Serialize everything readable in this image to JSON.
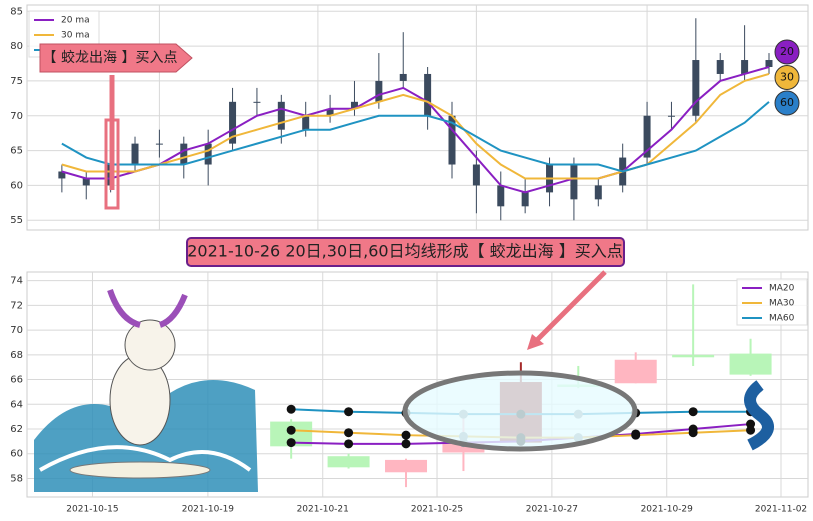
{
  "chart_data": [
    {
      "type": "candlestick",
      "xlim": [
        -1.43,
        30.6
      ],
      "ylim": [
        53.6,
        85.9
      ],
      "yticks": [
        55,
        60,
        65,
        70,
        75,
        80,
        85
      ],
      "grid": true,
      "candle_color": "#3b4a5e",
      "open": [
        62,
        61,
        60,
        63,
        66,
        66,
        63,
        66,
        72,
        72,
        68,
        70,
        71,
        72,
        75,
        76,
        70,
        63,
        60,
        57,
        59,
        63,
        58,
        60,
        64,
        70,
        70,
        78,
        76,
        78
      ],
      "high": [
        63,
        62,
        75,
        67,
        68,
        67,
        68,
        74,
        74,
        73,
        72,
        73,
        75,
        79,
        82,
        77,
        72,
        65,
        62,
        61,
        64,
        64,
        61,
        66,
        72,
        72,
        84,
        79,
        83,
        79
      ],
      "low": [
        59,
        58,
        59,
        62,
        64,
        61,
        60,
        65,
        70,
        66,
        67,
        69,
        70,
        71,
        74,
        68,
        61,
        56,
        55,
        56,
        57,
        55,
        57,
        59,
        63,
        68,
        69,
        75,
        75,
        76
      ],
      "close": [
        61,
        60,
        63,
        66,
        66,
        63,
        66,
        72,
        72,
        68,
        70,
        71,
        72,
        75,
        76,
        70,
        63,
        60,
        57,
        59,
        63,
        58,
        60,
        64,
        70,
        70,
        78,
        76,
        78,
        77
      ],
      "series": [
        {
          "name": "20 ma",
          "color": "#8a1fc2",
          "values": [
            62,
            61,
            61,
            62,
            63,
            65,
            66,
            68,
            70,
            71,
            70,
            71,
            71,
            73,
            74,
            72,
            68,
            64,
            60,
            59,
            60,
            61,
            61,
            62,
            65,
            68,
            72,
            75,
            76,
            77
          ]
        },
        {
          "name": "30 ma",
          "color": "#f0b73a",
          "values": [
            63,
            62,
            62,
            62,
            63,
            64,
            65,
            67,
            68,
            69,
            70,
            70,
            71,
            72,
            73,
            72,
            70,
            66,
            63,
            61,
            61,
            61,
            61,
            62,
            63,
            66,
            69,
            73,
            75,
            76
          ]
        },
        {
          "name": "60 ma",
          "color": "#1f93c2",
          "values": [
            66,
            64,
            63,
            63,
            63,
            63,
            64,
            65,
            66,
            67,
            68,
            68,
            69,
            70,
            70,
            70,
            69,
            67,
            65,
            64,
            63,
            63,
            63,
            62,
            63,
            64,
            65,
            67,
            69,
            72
          ]
        }
      ],
      "annotation": "【 蛟龙出海 】买入点",
      "badges": [
        {
          "label": "20",
          "color": "#8a1fc2"
        },
        {
          "label": "30",
          "color": "#f0b73a"
        },
        {
          "label": "60",
          "color": "#2a7fc9"
        }
      ]
    },
    {
      "type": "candlestick",
      "xlim": [
        -4.6,
        9.0
      ],
      "ylim": [
        56.5,
        74.7
      ],
      "yticks": [
        58,
        60,
        62,
        64,
        66,
        68,
        70,
        72,
        74
      ],
      "grid": true,
      "xticks": [
        {
          "value": -3.46,
          "label": "2021-10-15"
        },
        {
          "value": -1.45,
          "label": "2021-10-19"
        },
        {
          "value": 0.55,
          "label": "2021-10-21"
        },
        {
          "value": 2.54,
          "label": "2021-10-25"
        },
        {
          "value": 4.54,
          "label": "2021-10-27"
        },
        {
          "value": 6.54,
          "label": "2021-10-29"
        },
        {
          "value": 8.53,
          "label": "2021-11-02"
        }
      ],
      "open": [
        60.6,
        58.9,
        59.5,
        60.9,
        60.9,
        65.4,
        67.6,
        67.8,
        66.4
      ],
      "high": [
        62.8,
        60.0,
        59.6,
        62.9,
        67.4,
        67.1,
        68.2,
        73.7,
        69.3
      ],
      "low": [
        59.6,
        58.8,
        57.3,
        58.6,
        60.9,
        65.3,
        65.7,
        67.1,
        66.3
      ],
      "close": [
        62.6,
        59.8,
        58.5,
        60.1,
        65.8,
        65.6,
        65.7,
        68.0,
        68.1
      ],
      "colors": [
        "#b8f5b8",
        "#b8f5b8",
        "#ffb6c1",
        "#ffb6c1",
        "#a52a2a",
        "#b8f5b8",
        "#ffb6c1",
        "#b8f5b8",
        "#b8f5b8"
      ],
      "series": [
        {
          "name": "MA20",
          "color": "#8a1fc2",
          "values": [
            60.9,
            60.8,
            60.8,
            60.9,
            61.0,
            61.3,
            61.6,
            62.0,
            62.4
          ]
        },
        {
          "name": "MA30",
          "color": "#f0b73a",
          "values": [
            61.9,
            61.7,
            61.5,
            61.4,
            61.3,
            61.3,
            61.5,
            61.7,
            61.9
          ]
        },
        {
          "name": "MA60",
          "color": "#1f93c2",
          "values": [
            63.6,
            63.4,
            63.3,
            63.2,
            63.2,
            63.2,
            63.3,
            63.4,
            63.4
          ]
        }
      ],
      "annotation": "2021-10-26 20日,30日,60日均线形成【 蛟龙出海 】买入点"
    }
  ]
}
